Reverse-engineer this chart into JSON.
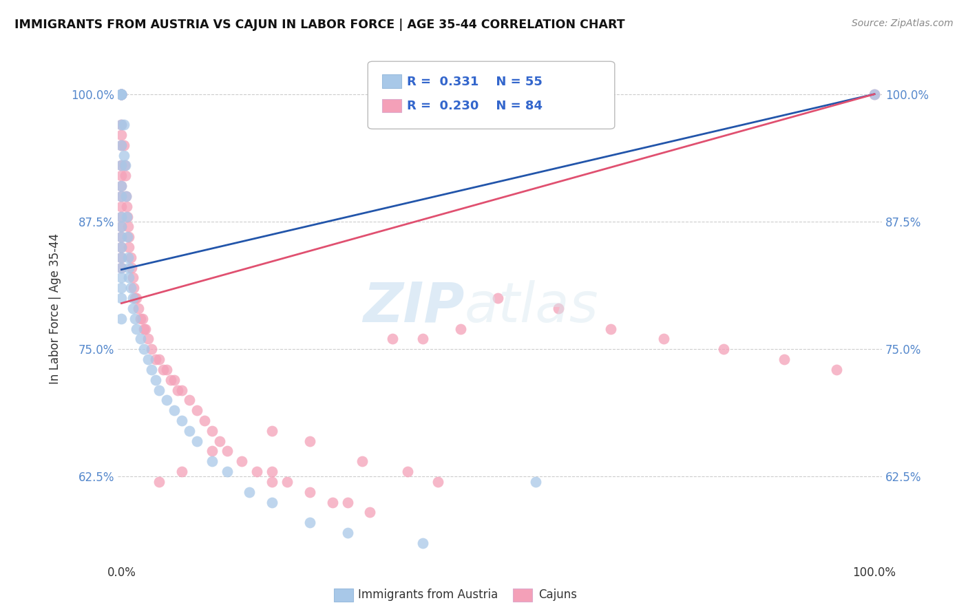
{
  "title": "IMMIGRANTS FROM AUSTRIA VS CAJUN IN LABOR FORCE | AGE 35-44 CORRELATION CHART",
  "source": "Source: ZipAtlas.com",
  "ylabel_label": "In Labor Force | Age 35-44",
  "legend_austria": {
    "R": 0.331,
    "N": 55
  },
  "legend_cajun": {
    "R": 0.23,
    "N": 84
  },
  "legend_label_austria": "Immigrants from Austria",
  "legend_label_cajun": "Cajuns",
  "austria_color": "#a8c8e8",
  "cajun_color": "#f4a0b8",
  "austria_line_color": "#2255aa",
  "cajun_line_color": "#e05070",
  "watermark_zip": "ZIP",
  "watermark_atlas": "atlas",
  "ytick_vals": [
    0.625,
    0.75,
    0.875,
    1.0
  ],
  "ytick_labels": [
    "62.5%",
    "75.0%",
    "87.5%",
    "100.0%"
  ],
  "xlim": [
    0.0,
    1.0
  ],
  "ylim": [
    0.54,
    1.04
  ],
  "austria_line_x": [
    0.0,
    1.0
  ],
  "austria_line_y": [
    0.828,
    1.0
  ],
  "cajun_line_x": [
    0.0,
    1.0
  ],
  "cajun_line_y": [
    0.795,
    1.0
  ],
  "austria_scatter_x": [
    0.0,
    0.0,
    0.0,
    0.0,
    0.0,
    0.0,
    0.0,
    0.0,
    0.0,
    0.0,
    0.0,
    0.0,
    0.0,
    0.0,
    0.0,
    0.0,
    0.0,
    0.0,
    0.0,
    0.0,
    0.0,
    0.003,
    0.003,
    0.005,
    0.006,
    0.007,
    0.008,
    0.009,
    0.01,
    0.01,
    0.012,
    0.015,
    0.015,
    0.018,
    0.02,
    0.025,
    0.03,
    0.035,
    0.04,
    0.045,
    0.05,
    0.06,
    0.07,
    0.08,
    0.09,
    0.1,
    0.12,
    0.14,
    0.17,
    0.2,
    0.25,
    0.3,
    0.4,
    0.55,
    1.0
  ],
  "austria_scatter_y": [
    1.0,
    1.0,
    1.0,
    1.0,
    1.0,
    1.0,
    0.97,
    0.95,
    0.93,
    0.91,
    0.9,
    0.88,
    0.87,
    0.86,
    0.85,
    0.84,
    0.83,
    0.82,
    0.81,
    0.8,
    0.78,
    0.97,
    0.94,
    0.93,
    0.9,
    0.88,
    0.86,
    0.84,
    0.83,
    0.82,
    0.81,
    0.8,
    0.79,
    0.78,
    0.77,
    0.76,
    0.75,
    0.74,
    0.73,
    0.72,
    0.71,
    0.7,
    0.69,
    0.68,
    0.67,
    0.66,
    0.64,
    0.63,
    0.61,
    0.6,
    0.58,
    0.57,
    0.56,
    0.62,
    1.0
  ],
  "cajun_scatter_x": [
    0.0,
    0.0,
    0.0,
    0.0,
    0.0,
    0.0,
    0.0,
    0.0,
    0.0,
    0.0,
    0.0,
    0.0,
    0.0,
    0.0,
    0.0,
    0.0,
    0.0,
    0.0,
    0.0,
    0.0,
    0.003,
    0.004,
    0.005,
    0.006,
    0.007,
    0.008,
    0.009,
    0.01,
    0.01,
    0.012,
    0.013,
    0.015,
    0.016,
    0.018,
    0.02,
    0.022,
    0.025,
    0.028,
    0.03,
    0.032,
    0.035,
    0.04,
    0.045,
    0.05,
    0.055,
    0.06,
    0.065,
    0.07,
    0.075,
    0.08,
    0.09,
    0.1,
    0.11,
    0.12,
    0.13,
    0.14,
    0.16,
    0.18,
    0.2,
    0.22,
    0.25,
    0.28,
    0.3,
    0.33,
    0.36,
    0.4,
    0.45,
    0.2,
    0.25,
    0.32,
    0.38,
    0.42,
    0.5,
    0.58,
    0.65,
    0.72,
    0.8,
    0.88,
    0.95,
    1.0,
    0.05,
    0.08,
    0.12,
    0.2
  ],
  "cajun_scatter_y": [
    1.0,
    1.0,
    1.0,
    1.0,
    1.0,
    1.0,
    0.97,
    0.96,
    0.95,
    0.93,
    0.92,
    0.91,
    0.9,
    0.89,
    0.88,
    0.87,
    0.86,
    0.85,
    0.84,
    0.83,
    0.95,
    0.93,
    0.92,
    0.9,
    0.89,
    0.88,
    0.87,
    0.86,
    0.85,
    0.84,
    0.83,
    0.82,
    0.81,
    0.8,
    0.8,
    0.79,
    0.78,
    0.78,
    0.77,
    0.77,
    0.76,
    0.75,
    0.74,
    0.74,
    0.73,
    0.73,
    0.72,
    0.72,
    0.71,
    0.71,
    0.7,
    0.69,
    0.68,
    0.67,
    0.66,
    0.65,
    0.64,
    0.63,
    0.63,
    0.62,
    0.61,
    0.6,
    0.6,
    0.59,
    0.76,
    0.76,
    0.77,
    0.67,
    0.66,
    0.64,
    0.63,
    0.62,
    0.8,
    0.79,
    0.77,
    0.76,
    0.75,
    0.74,
    0.73,
    1.0,
    0.62,
    0.63,
    0.65,
    0.62
  ]
}
